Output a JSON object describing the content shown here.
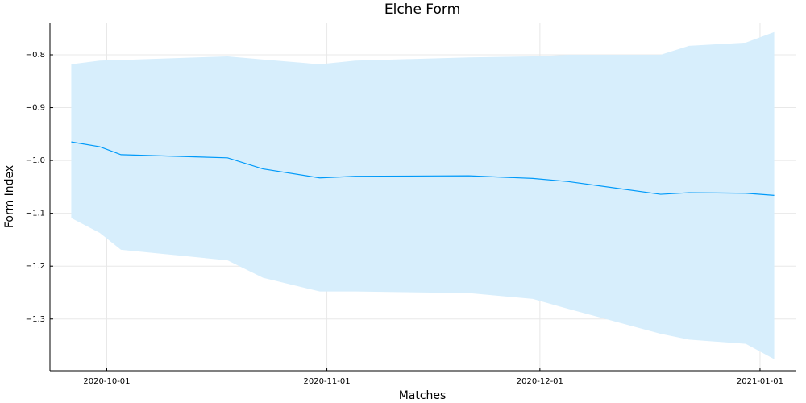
{
  "chart_data": {
    "type": "line",
    "title": "Elche Form",
    "xlabel": "Matches",
    "ylabel": "Form Index",
    "x": [
      "2020-09-26",
      "2020-09-30",
      "2020-10-03",
      "2020-10-18",
      "2020-10-23",
      "2020-10-31",
      "2020-11-05",
      "2020-11-21",
      "2020-11-30",
      "2020-12-05",
      "2020-12-18",
      "2020-12-22",
      "2020-12-30",
      "2021-01-03"
    ],
    "values": [
      -0.965,
      -0.974,
      -0.989,
      -0.995,
      -1.016,
      -1.033,
      -1.03,
      -1.029,
      -1.034,
      -1.04,
      -1.064,
      -1.061,
      -1.062,
      -1.066
    ],
    "upper": [
      -0.818,
      -0.811,
      -0.81,
      -0.803,
      -0.809,
      -0.818,
      -0.811,
      -0.805,
      -0.803,
      -0.8,
      -0.8,
      -0.783,
      -0.777,
      -0.757
    ],
    "lower": [
      -1.109,
      -1.137,
      -1.169,
      -1.189,
      -1.222,
      -1.248,
      -1.248,
      -1.251,
      -1.262,
      -1.281,
      -1.328,
      -1.339,
      -1.347,
      -1.376
    ],
    "color": "#009af9",
    "band_color": "#d7eefc",
    "xlim": [
      "2020-09-23",
      "2021-01-06"
    ],
    "xticks": [
      "2020-10-01",
      "2020-11-01",
      "2020-12-01",
      "2021-01-01"
    ],
    "ylim": [
      -1.398,
      -0.739
    ],
    "yticks": [
      {
        "value": -1.3,
        "label": "−1.3"
      },
      {
        "value": -1.2,
        "label": "−1.2"
      },
      {
        "value": -1.1,
        "label": "−1.1"
      },
      {
        "value": -1.0,
        "label": "−1.0"
      },
      {
        "value": -0.9,
        "label": "−0.9"
      },
      {
        "value": -0.8,
        "label": "−0.8"
      }
    ],
    "grid": true
  }
}
